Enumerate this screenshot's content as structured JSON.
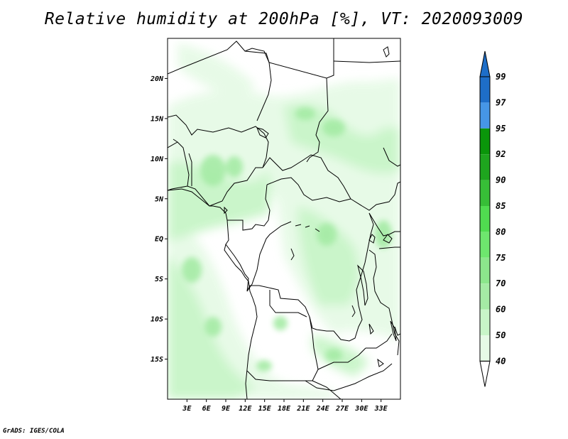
{
  "title": "Relative humidity at 200hPa [%], VT: 2020093009",
  "credit": "GrADS: IGES/COLA",
  "map": {
    "projection": "lat-lon",
    "lon_range": [
      0,
      36
    ],
    "lat_range": [
      -20,
      25
    ],
    "lat_ticks": [
      {
        "value": 20,
        "label": "20N"
      },
      {
        "value": 15,
        "label": "15N"
      },
      {
        "value": 10,
        "label": "10N"
      },
      {
        "value": 5,
        "label": "5N"
      },
      {
        "value": 0,
        "label": "EQ"
      },
      {
        "value": -5,
        "label": "5S"
      },
      {
        "value": -10,
        "label": "10S"
      },
      {
        "value": -15,
        "label": "15S"
      }
    ],
    "lon_ticks": [
      {
        "value": 3,
        "label": "3E"
      },
      {
        "value": 6,
        "label": "6E"
      },
      {
        "value": 9,
        "label": "9E"
      },
      {
        "value": 12,
        "label": "12E"
      },
      {
        "value": 15,
        "label": "15E"
      },
      {
        "value": 18,
        "label": "18E"
      },
      {
        "value": 21,
        "label": "21E"
      },
      {
        "value": 24,
        "label": "24E"
      },
      {
        "value": 27,
        "label": "27E"
      },
      {
        "value": 30,
        "label": "30E"
      },
      {
        "value": 33,
        "label": "33E"
      }
    ]
  },
  "colorbar": {
    "levels": [
      {
        "label": "99"
      },
      {
        "label": "97"
      },
      {
        "label": "95"
      },
      {
        "label": "92"
      },
      {
        "label": "90"
      },
      {
        "label": "85"
      },
      {
        "label": "80"
      },
      {
        "label": "75"
      },
      {
        "label": "70"
      },
      {
        "label": "60"
      },
      {
        "label": "50"
      },
      {
        "label": "40"
      }
    ],
    "colors": [
      "#1e6ec8",
      "#1e6ec8",
      "#4696e6",
      "#0a960a",
      "#1ea51e",
      "#37be37",
      "#50dc50",
      "#6ee66e",
      "#8ce68c",
      "#a5eba5",
      "#c8f5c8",
      "#e6fae6"
    ],
    "top_arrow_color": "#1e6ec8",
    "bottom_arrow_color": "#ffffff"
  }
}
